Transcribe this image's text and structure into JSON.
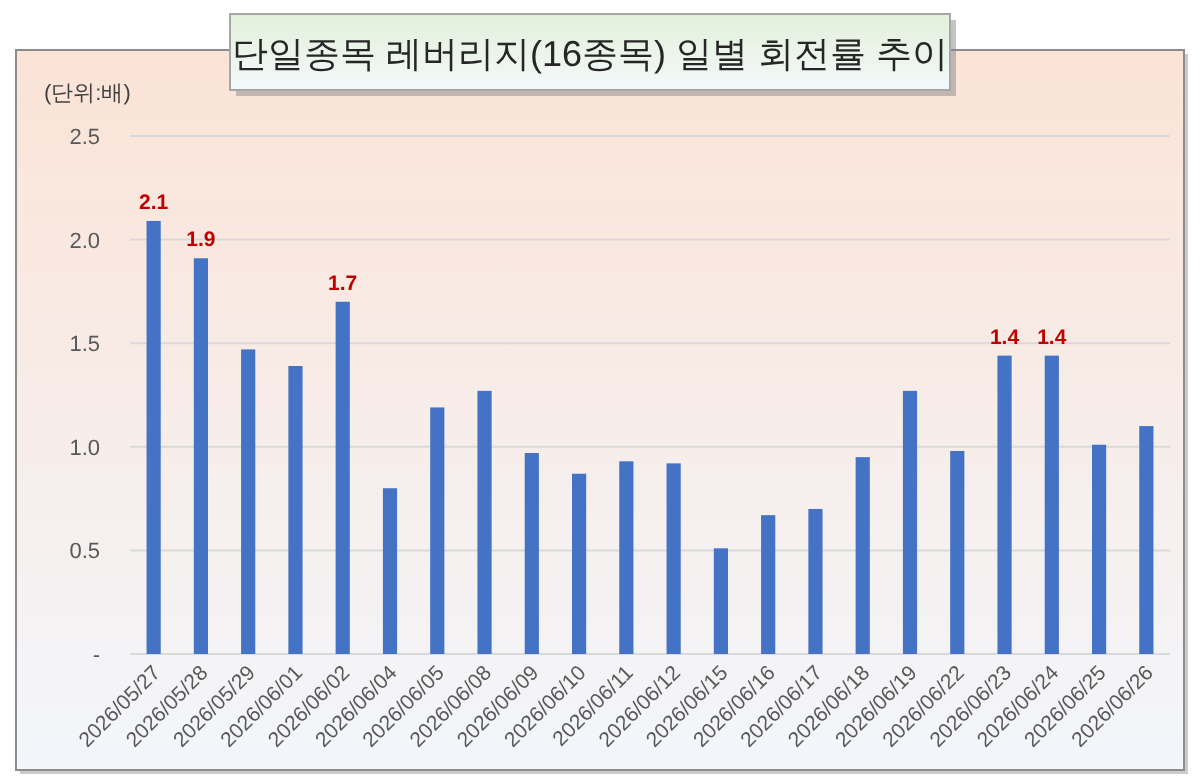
{
  "chart_data": {
    "type": "bar",
    "title": "단일종목 레버리지(16종목) 일별 회전률 추이",
    "ylabel": "(단위:배)",
    "categories": [
      "2026/05/27",
      "2026/05/28",
      "2026/05/29",
      "2026/06/01",
      "2026/06/02",
      "2026/06/04",
      "2026/06/05",
      "2026/06/08",
      "2026/06/09",
      "2026/06/10",
      "2026/06/11",
      "2026/06/12",
      "2026/06/15",
      "2026/06/16",
      "2026/06/17",
      "2026/06/18",
      "2026/06/19",
      "2026/06/22",
      "2026/06/23",
      "2026/06/24",
      "2026/06/25",
      "2026/06/26"
    ],
    "values": [
      2.09,
      1.91,
      1.47,
      1.39,
      1.7,
      0.8,
      1.19,
      1.27,
      0.97,
      0.87,
      0.93,
      0.92,
      0.51,
      0.67,
      0.7,
      0.95,
      1.27,
      0.98,
      1.44,
      1.44,
      1.01,
      1.1
    ],
    "value_labels": [
      "2.1",
      "1.9",
      null,
      null,
      "1.7",
      null,
      null,
      null,
      null,
      null,
      null,
      null,
      null,
      null,
      null,
      null,
      null,
      null,
      "1.4",
      "1.4",
      null,
      null
    ],
    "color": "#4472c4",
    "ylim": [
      0,
      2.5
    ],
    "yticks": [
      {
        "value": 0,
        "label": "-"
      },
      {
        "value": 0.5,
        "label": "0.5"
      },
      {
        "value": 1,
        "label": "1.0"
      },
      {
        "value": 1.5,
        "label": "1.5"
      },
      {
        "value": 2,
        "label": "2.0"
      },
      {
        "value": 2.5,
        "label": "2.5"
      }
    ],
    "grid": "y"
  }
}
